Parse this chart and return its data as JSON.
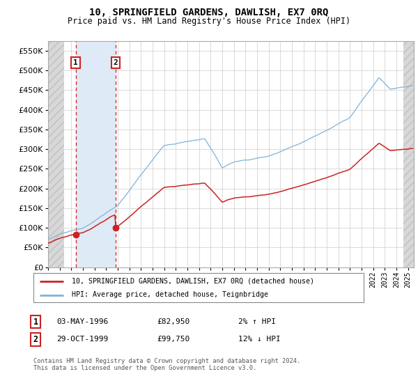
{
  "title": "10, SPRINGFIELD GARDENS, DAWLISH, EX7 0RQ",
  "subtitle": "Price paid vs. HM Land Registry's House Price Index (HPI)",
  "legend_entry1": "10, SPRINGFIELD GARDENS, DAWLISH, EX7 0RQ (detached house)",
  "legend_entry2": "HPI: Average price, detached house, Teignbridge",
  "sale1_date": "03-MAY-1996",
  "sale1_price": 82950,
  "sale2_date": "29-OCT-1999",
  "sale2_price": 99750,
  "sale1_hpi_text": "2% ↑ HPI",
  "sale2_hpi_text": "12% ↓ HPI",
  "footer": "Contains HM Land Registry data © Crown copyright and database right 2024.\nThis data is licensed under the Open Government Licence v3.0.",
  "ylim": [
    0,
    575000
  ],
  "yticks": [
    0,
    50000,
    100000,
    150000,
    200000,
    250000,
    300000,
    350000,
    400000,
    450000,
    500000,
    550000
  ],
  "hpi_color": "#7fb3d9",
  "price_color": "#cc2222",
  "sale1_year": 1996.37,
  "sale2_year": 1999.83,
  "xmin": 1994,
  "xmax": 2025.5,
  "hatch_end": 1995.4,
  "hatch_start_right": 2024.6
}
